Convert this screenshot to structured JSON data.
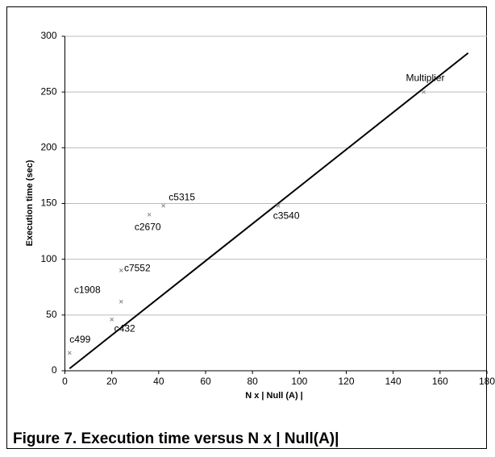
{
  "chart_data": {
    "type": "scatter",
    "caption": "Figure 7. Execution time versus N x | Null(A)|",
    "x_label": "N x | Null (A) |",
    "y_label": "Execution time (sec)",
    "xlim": [
      0,
      180
    ],
    "ylim": [
      0,
      300
    ],
    "xticks": [
      0,
      20,
      40,
      60,
      80,
      100,
      120,
      140,
      160,
      180
    ],
    "yticks": [
      0,
      50,
      100,
      150,
      200,
      250,
      300
    ],
    "grid": true,
    "point_labels": [
      "c499",
      "c432",
      "c1908",
      "c7552",
      "c2670",
      "c5315",
      "c3540",
      "Multiplier"
    ],
    "x": [
      2,
      20,
      24,
      24,
      36,
      42,
      91,
      153
    ],
    "values": [
      16,
      46,
      62,
      90,
      140,
      148,
      148,
      250
    ],
    "color": "#888888",
    "trend": {
      "x": [
        2,
        172
      ],
      "values": [
        2,
        285
      ],
      "color": "#000000"
    }
  }
}
